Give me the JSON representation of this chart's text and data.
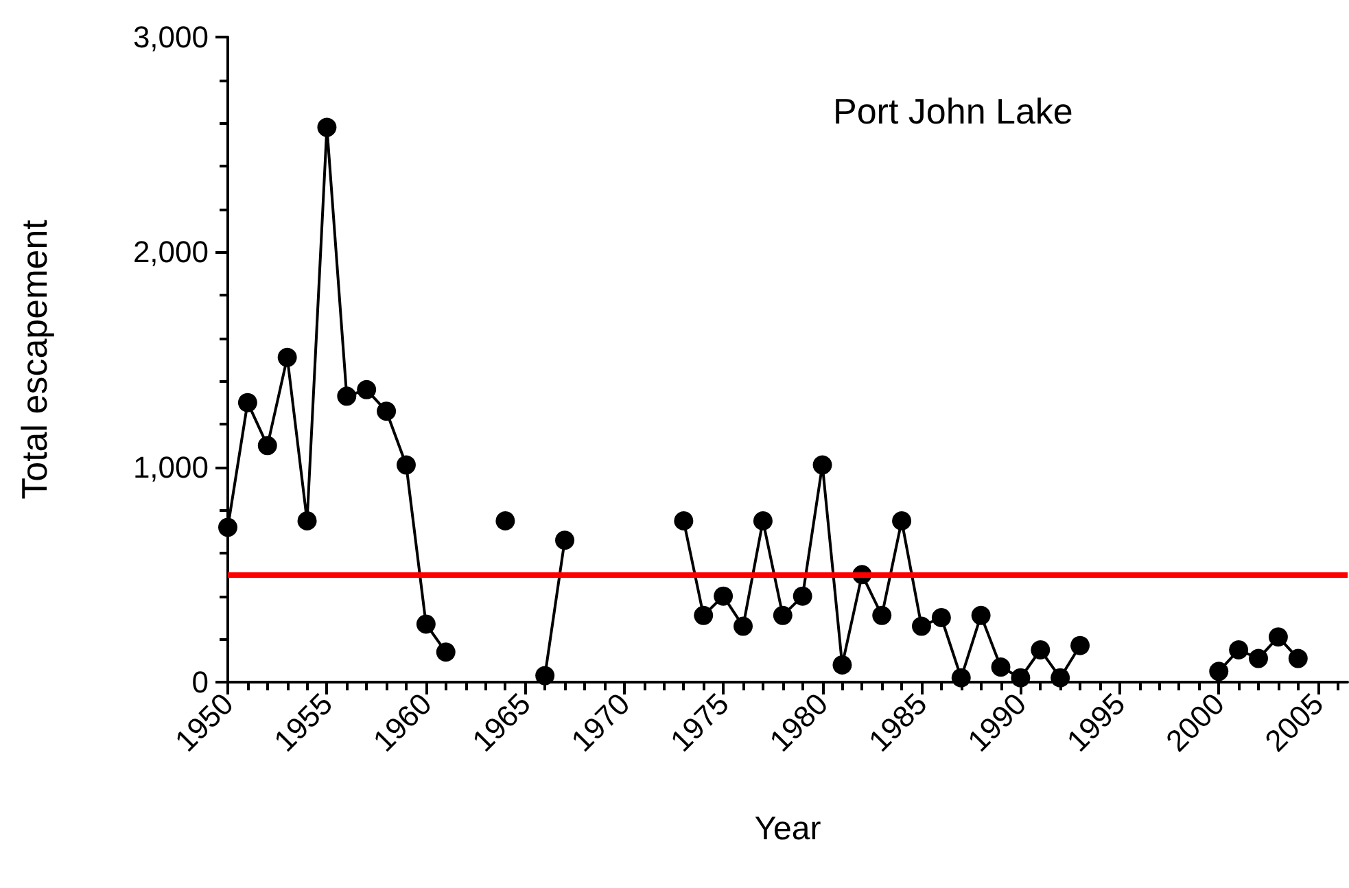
{
  "chart_data": {
    "type": "line",
    "xlabel": "Year",
    "ylabel": "Total escapement",
    "annotations": [
      "Port John Lake"
    ],
    "x": [
      1950,
      1951,
      1952,
      1953,
      1954,
      1955,
      1956,
      1957,
      1958,
      1959,
      1960,
      1961,
      1962,
      1963,
      1964,
      1965,
      1966,
      1967,
      1968,
      1969,
      1970,
      1971,
      1972,
      1973,
      1974,
      1975,
      1976,
      1977,
      1978,
      1979,
      1980,
      1981,
      1982,
      1983,
      1984,
      1985,
      1986,
      1987,
      1988,
      1989,
      1990,
      1991,
      1992,
      1993,
      1994,
      1995,
      1996,
      1997,
      1998,
      1999,
      2000,
      2001,
      2002,
      2003,
      2004
    ],
    "series": [
      {
        "color": "#000000",
        "values": [
          720,
          1300,
          1100,
          1510,
          750,
          2580,
          1330,
          1360,
          1260,
          1010,
          270,
          140,
          null,
          null,
          750,
          null,
          30,
          660,
          null,
          null,
          null,
          null,
          null,
          750,
          310,
          400,
          260,
          750,
          310,
          400,
          1010,
          80,
          500,
          310,
          750,
          260,
          300,
          20,
          310,
          70,
          20,
          150,
          20,
          170,
          null,
          null,
          null,
          null,
          null,
          null,
          50,
          150,
          110,
          210,
          110
        ]
      }
    ],
    "xlim": [
      1950,
      2006.5
    ],
    "xticks": [
      1950,
      1955,
      1960,
      1965,
      1970,
      1975,
      1980,
      1985,
      1990,
      1995,
      2000,
      2005
    ],
    "ylim": [
      0,
      3000
    ],
    "yticks": [
      0,
      {
        "value": 1000,
        "label": "1,000"
      },
      {
        "value": 2000,
        "label": "2,000"
      },
      {
        "value": 3000,
        "label": "3,000"
      }
    ],
    "ref_lines": [
      {
        "axis": "y",
        "value": 500,
        "color": "#ff0000"
      }
    ],
    "marker": "circle",
    "line_style": "solid"
  }
}
